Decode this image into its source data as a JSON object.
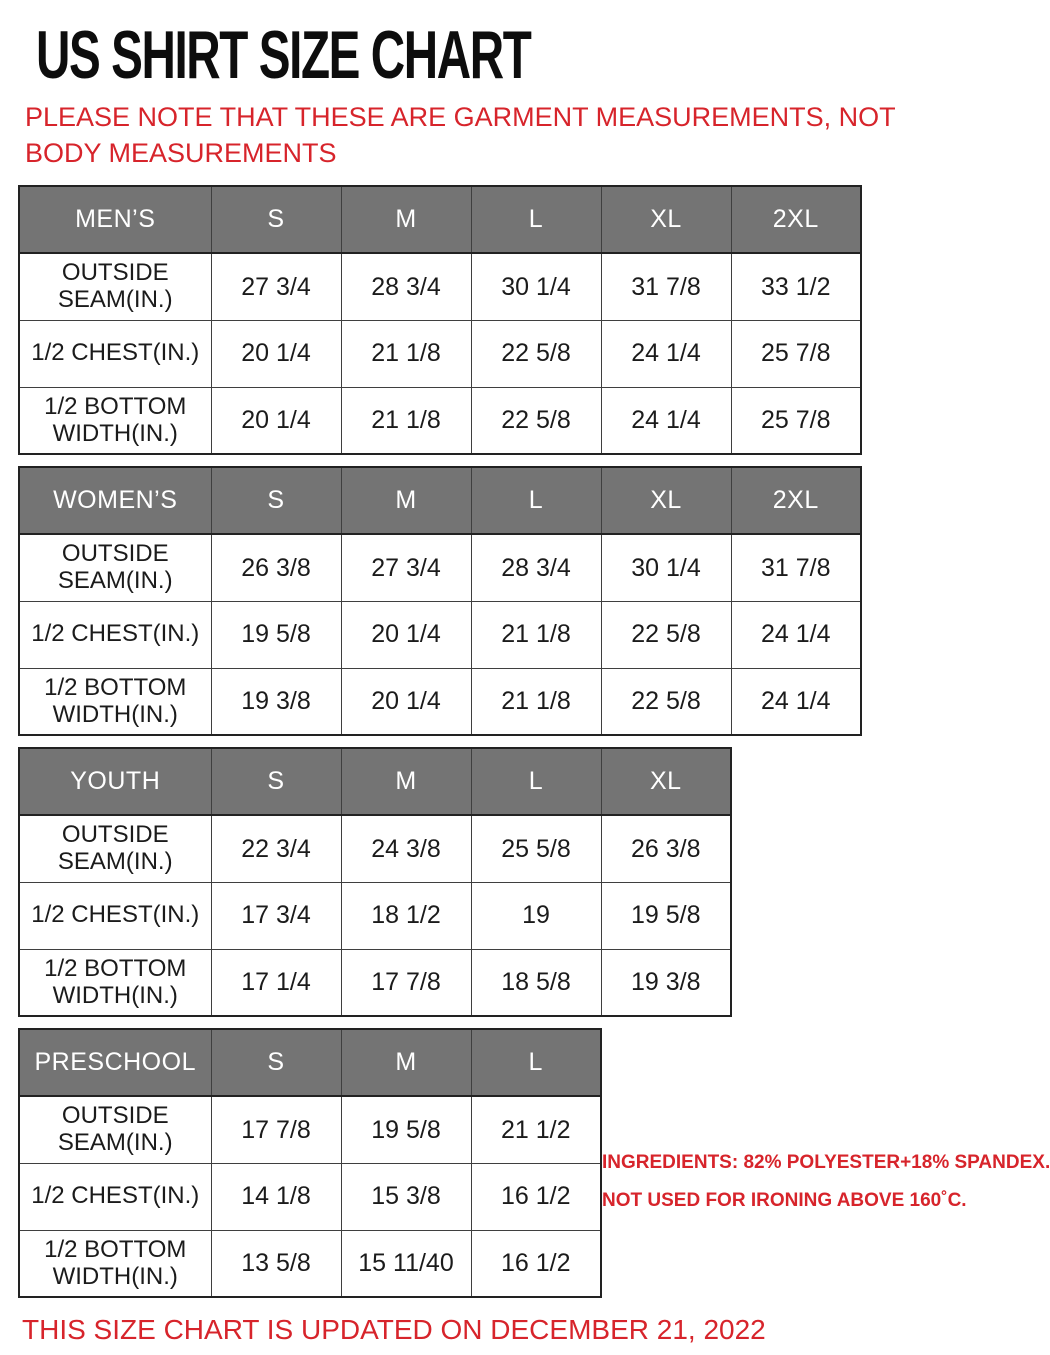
{
  "page": {
    "title": "US SHIRT SIZE CHART",
    "note": "PLEASE NOTE THAT THESE ARE GARMENT MEASUREMENTS, NOT BODY MEASUREMENTS",
    "ingredients_line1": "INGREDIENTS: 82% POLYESTER+18% SPANDEX.",
    "ingredients_line2": "NOT USED FOR IRONING ABOVE 160˚C.",
    "footer": "THIS SIZE CHART IS UPDATED ON DECEMBER 21, 2022"
  },
  "colors": {
    "accent_red": "#d7242b",
    "header_gray": "#747474",
    "header_text": "#ffffff",
    "body_text": "#1b1b1b",
    "grid_line": "#3f3f3f"
  },
  "tables": [
    {
      "name": "MEN’S",
      "sizes": [
        "S",
        "M",
        "L",
        "XL",
        "2XL"
      ],
      "rows": [
        {
          "label": "OUTSIDE SEAM(IN.)",
          "values": [
            "27 3/4",
            "28 3/4",
            "30 1/4",
            "31 7/8",
            "33 1/2"
          ]
        },
        {
          "label": "1/2 CHEST(IN.)",
          "values": [
            "20 1/4",
            "21 1/8",
            "22 5/8",
            "24 1/4",
            "25 7/8"
          ]
        },
        {
          "label": "1/2 BOTTOM WIDTH(IN.)",
          "values": [
            "20 1/4",
            "21 1/8",
            "22 5/8",
            "24 1/4",
            "25 7/8"
          ]
        }
      ]
    },
    {
      "name": "WOMEN’S",
      "sizes": [
        "S",
        "M",
        "L",
        "XL",
        "2XL"
      ],
      "rows": [
        {
          "label": "OUTSIDE SEAM(IN.)",
          "values": [
            "26 3/8",
            "27 3/4",
            "28 3/4",
            "30 1/4",
            "31 7/8"
          ]
        },
        {
          "label": "1/2 CHEST(IN.)",
          "values": [
            "19 5/8",
            "20 1/4",
            "21 1/8",
            "22 5/8",
            "24 1/4"
          ]
        },
        {
          "label": "1/2 BOTTOM WIDTH(IN.)",
          "values": [
            "19 3/8",
            "20 1/4",
            "21 1/8",
            "22 5/8",
            "24 1/4"
          ]
        }
      ]
    },
    {
      "name": "YOUTH",
      "sizes": [
        "S",
        "M",
        "L",
        "XL"
      ],
      "rows": [
        {
          "label": "OUTSIDE SEAM(IN.)",
          "values": [
            "22 3/4",
            "24 3/8",
            "25 5/8",
            "26 3/8"
          ]
        },
        {
          "label": "1/2 CHEST(IN.)",
          "values": [
            "17 3/4",
            "18 1/2",
            "19",
            "19 5/8"
          ]
        },
        {
          "label": "1/2 BOTTOM WIDTH(IN.)",
          "values": [
            "17 1/4",
            "17 7/8",
            "18 5/8",
            "19 3/8"
          ]
        }
      ]
    },
    {
      "name": "PRESCHOOL",
      "sizes": [
        "S",
        "M",
        "L"
      ],
      "rows": [
        {
          "label": "OUTSIDE SEAM(IN.)",
          "values": [
            "17 7/8",
            "19 5/8",
            "21 1/2"
          ]
        },
        {
          "label": "1/2 CHEST(IN.)",
          "values": [
            "14 1/8",
            "15 3/8",
            "16 1/2"
          ]
        },
        {
          "label": "1/2 BOTTOM WIDTH(IN.)",
          "values": [
            "13 5/8",
            "15 11/40",
            "16 1/2"
          ]
        }
      ]
    }
  ]
}
